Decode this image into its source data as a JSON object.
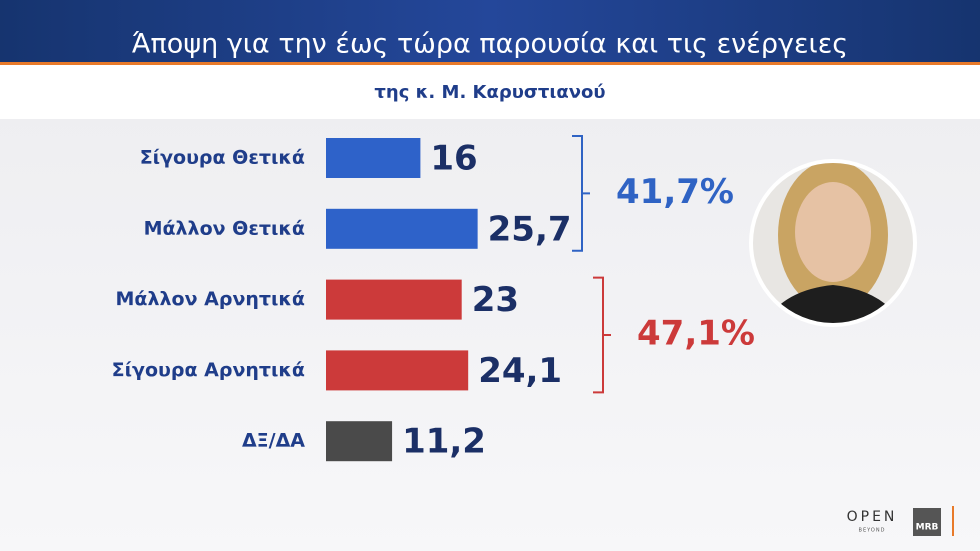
{
  "chart_data": {
    "type": "bar",
    "title": "Άποψη για την έως τώρα παρουσία και τις ενέργειες",
    "subtitle": "της κ. Μ. Καρυστιανού",
    "categories": [
      "Σίγουρα Θετικά",
      "Μάλλον Θετικά",
      "Μάλλον Αρνητικά",
      "Σίγουρα Αρνητικά",
      "ΔΞ/ΔΑ"
    ],
    "values": [
      16,
      25.7,
      23,
      24.1,
      11.2
    ],
    "value_labels": [
      "16",
      "25,7",
      "23",
      "24,1",
      "11,2"
    ],
    "colors": [
      "#2e62c9",
      "#2e62c9",
      "#cc3a3a",
      "#cc3a3a",
      "#4a4a4a"
    ],
    "annotations": [
      {
        "text": "41,7%",
        "color": "#2f63c4"
      },
      {
        "text": "47,1%",
        "color": "#cc3a3a"
      }
    ]
  },
  "logos": {
    "open": "OPEN",
    "beyond": "BEYOND",
    "mrb": "MRB"
  }
}
